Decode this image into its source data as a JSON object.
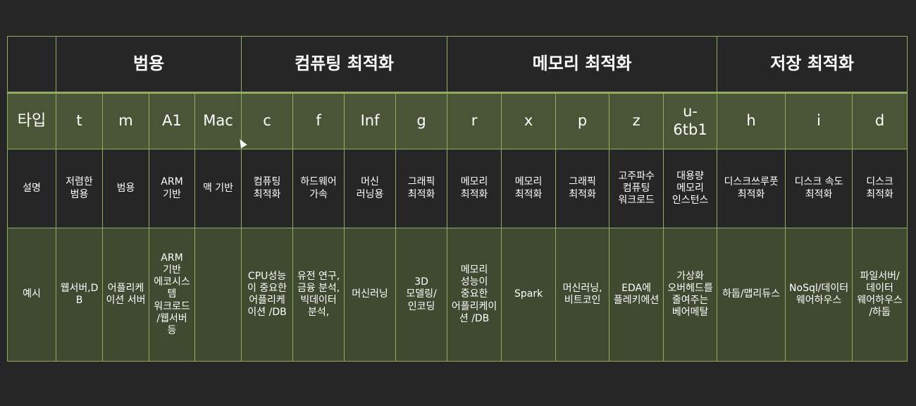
{
  "header": {
    "corner": "",
    "groups": [
      "범용",
      "컴퓨팅 최적화",
      "메모리 최적화",
      "저장 최적화"
    ]
  },
  "rows": {
    "type_label": "타입",
    "desc_label": "설명",
    "example_label": "예시"
  },
  "types": [
    "t",
    "m",
    "A1",
    "Mac",
    "c",
    "f",
    "Inf",
    "g",
    "r",
    "x",
    "p",
    "z",
    "u-6tb1",
    "h",
    "i",
    "d"
  ],
  "descriptions": [
    "저렴한 범용",
    "범용",
    "ARM 기반",
    "맥 기반",
    "컴퓨팅 최적화",
    "하드웨어 가속",
    "머신 러닝용",
    "그래픽 최적화",
    "메모리 최적화",
    "메모리 최적화",
    "그래픽 최적화",
    "고주파수 컴퓨팅 워크로드",
    "대용량 메모리 인스턴스",
    "디스크쓰루풋 최적화",
    "디스크 속도 최적화",
    "디스크 최적화"
  ],
  "examples": [
    "웹서버,DB",
    "어플리케이션 서버",
    "ARM 기반 에코시스템 워크로드/웹서버 등",
    "",
    "CPU성능이 중요한 어플리케이션 /DB",
    "유전 연구,금융 분석,빅데이터 분석,",
    "머신러닝",
    "3D 모델링/인코딩",
    "메모리 성능이 중요한 어플리케이션 /DB",
    "Spark",
    "머신러닝,비트코인",
    "EDA에 플레키에션",
    "가상화 오버헤드를 줄여주는 베어메탈",
    "하둡/맵리듀스",
    "NoSql/데이터 웨어하우스",
    "파일서버/데이터 웨어하우스/하둡"
  ],
  "colors": {
    "background": "#262626",
    "border": "#8fae5f",
    "type_row": "#4a5436",
    "example_row": "#3f4a31"
  }
}
